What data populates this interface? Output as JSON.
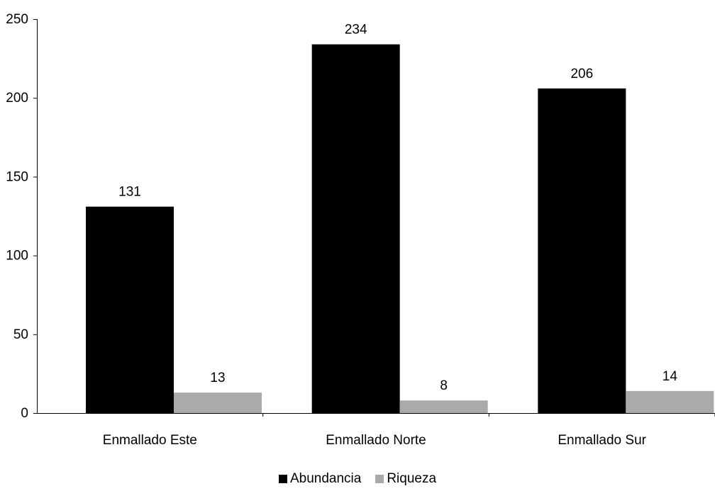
{
  "chart_data": {
    "type": "bar",
    "categories": [
      "Enmallado Este",
      "Enmallado Norte",
      "Enmallado Sur"
    ],
    "series": [
      {
        "name": "Abundancia",
        "values": [
          131,
          234,
          206
        ],
        "color": "#000000"
      },
      {
        "name": "Riqueza",
        "values": [
          13,
          8,
          14
        ],
        "color": "#aaaaaa"
      }
    ],
    "ylim": [
      0,
      250
    ],
    "yticks": [
      0,
      50,
      100,
      150,
      200,
      250
    ],
    "grid": false,
    "legend_position": "bottom",
    "data_labels": true
  }
}
